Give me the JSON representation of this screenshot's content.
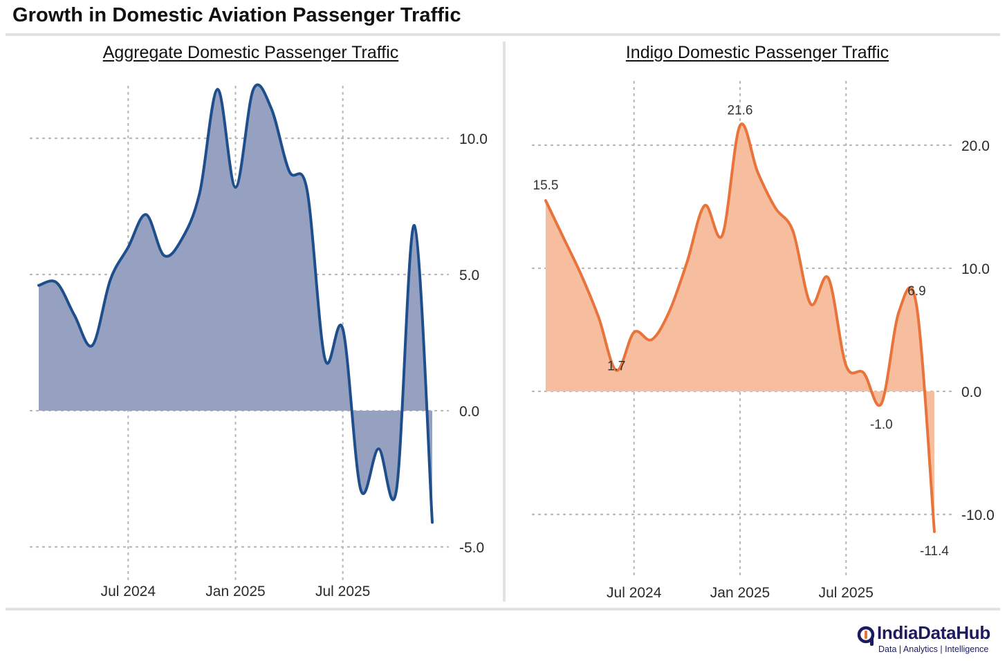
{
  "title": "Growth in Domestic Aviation Passenger Traffic",
  "logo": {
    "name": "IndiaDataHub",
    "tagline": "Data | Analytics | Intelligence"
  },
  "colors": {
    "aggregate_line": "#1e4f8c",
    "aggregate_fill": "#96a1c1",
    "indigo_line": "#e8743b",
    "indigo_fill": "#f6be9e"
  },
  "chart_data": [
    {
      "type": "area",
      "title": "Aggregate Domestic Passenger Traffic",
      "x": [
        "2024-02",
        "2024-03",
        "2024-04",
        "2024-05",
        "2024-06",
        "2024-07",
        "2024-08",
        "2024-09",
        "2024-10",
        "2024-11",
        "2024-12",
        "2025-01",
        "2025-02",
        "2025-03",
        "2025-04",
        "2025-05",
        "2025-06",
        "2025-07",
        "2025-08",
        "2025-09",
        "2025-10",
        "2025-11",
        "2025-12"
      ],
      "values": [
        4.6,
        4.7,
        3.5,
        2.4,
        4.8,
        6.0,
        7.2,
        5.7,
        6.3,
        8.0,
        11.8,
        8.2,
        11.8,
        11.1,
        8.8,
        8.1,
        1.9,
        3.0,
        -2.9,
        -1.4,
        -2.9,
        6.8,
        -4.1
      ],
      "x_ticks": [
        "Jul 2024",
        "Jan 2025",
        "Jul 2025"
      ],
      "y_ticks": [
        10.0,
        5.0,
        0.0,
        -5.0
      ],
      "y_tick_labels": [
        "10.0",
        "5.0",
        "0.0",
        "-5.0"
      ],
      "ylim": [
        -6.5,
        13.0
      ],
      "xlabel": "",
      "ylabel": "",
      "grid": true
    },
    {
      "type": "area",
      "title": "Indigo Domestic Passenger Traffic",
      "x": [
        "2024-02",
        "2024-03",
        "2024-04",
        "2024-05",
        "2024-06",
        "2024-07",
        "2024-08",
        "2024-09",
        "2024-10",
        "2024-11",
        "2024-12",
        "2025-01",
        "2025-02",
        "2025-03",
        "2025-04",
        "2025-05",
        "2025-06",
        "2025-07",
        "2025-08",
        "2025-09",
        "2025-10",
        "2025-11",
        "2025-12"
      ],
      "values": [
        15.5,
        12.5,
        9.5,
        6.0,
        1.7,
        4.8,
        4.2,
        6.5,
        10.5,
        15.1,
        12.7,
        21.6,
        17.8,
        14.9,
        13.0,
        7.1,
        9.2,
        2.1,
        1.5,
        -1.0,
        6.5,
        6.9,
        -11.4
      ],
      "data_labels": [
        {
          "index": 0,
          "text": "15.5"
        },
        {
          "index": 4,
          "text": "1.7"
        },
        {
          "index": 11,
          "text": "21.6"
        },
        {
          "index": 19,
          "text": "-1.0"
        },
        {
          "index": 21,
          "text": "6.9"
        },
        {
          "index": 22,
          "text": "-11.4"
        }
      ],
      "x_ticks": [
        "Jul 2024",
        "Jan 2025",
        "Jul 2025"
      ],
      "y_ticks": [
        20.0,
        10.0,
        0.0,
        -10.0
      ],
      "y_tick_labels": [
        "20.0",
        "10.0",
        "0.0",
        "-10.0"
      ],
      "ylim": [
        -15.0,
        25.0
      ],
      "xlabel": "",
      "ylabel": "",
      "grid": true
    }
  ]
}
